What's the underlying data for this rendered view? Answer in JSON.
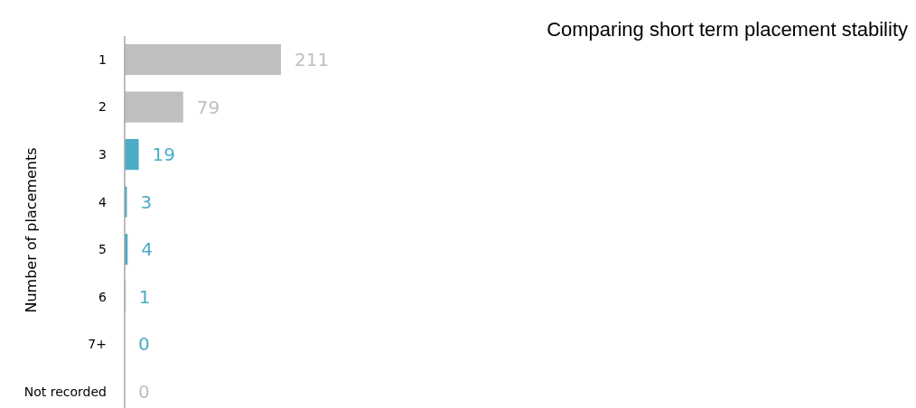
{
  "chart_data": {
    "type": "bar",
    "orientation": "horizontal",
    "title": "Comparing short term placement stability",
    "ylabel": "Number of placements",
    "categories": [
      "1",
      "2",
      "3",
      "4",
      "5",
      "6",
      "7+",
      "Not recorded"
    ],
    "values": [
      211,
      79,
      19,
      3,
      4,
      1,
      0,
      0
    ],
    "colors": [
      "#bfbfbf",
      "#bfbfbf",
      "#4bacc6",
      "#4bacc6",
      "#4bacc6",
      "#4bacc6",
      "#4bacc6",
      "#bfbfbf"
    ],
    "data_labels": true
  }
}
